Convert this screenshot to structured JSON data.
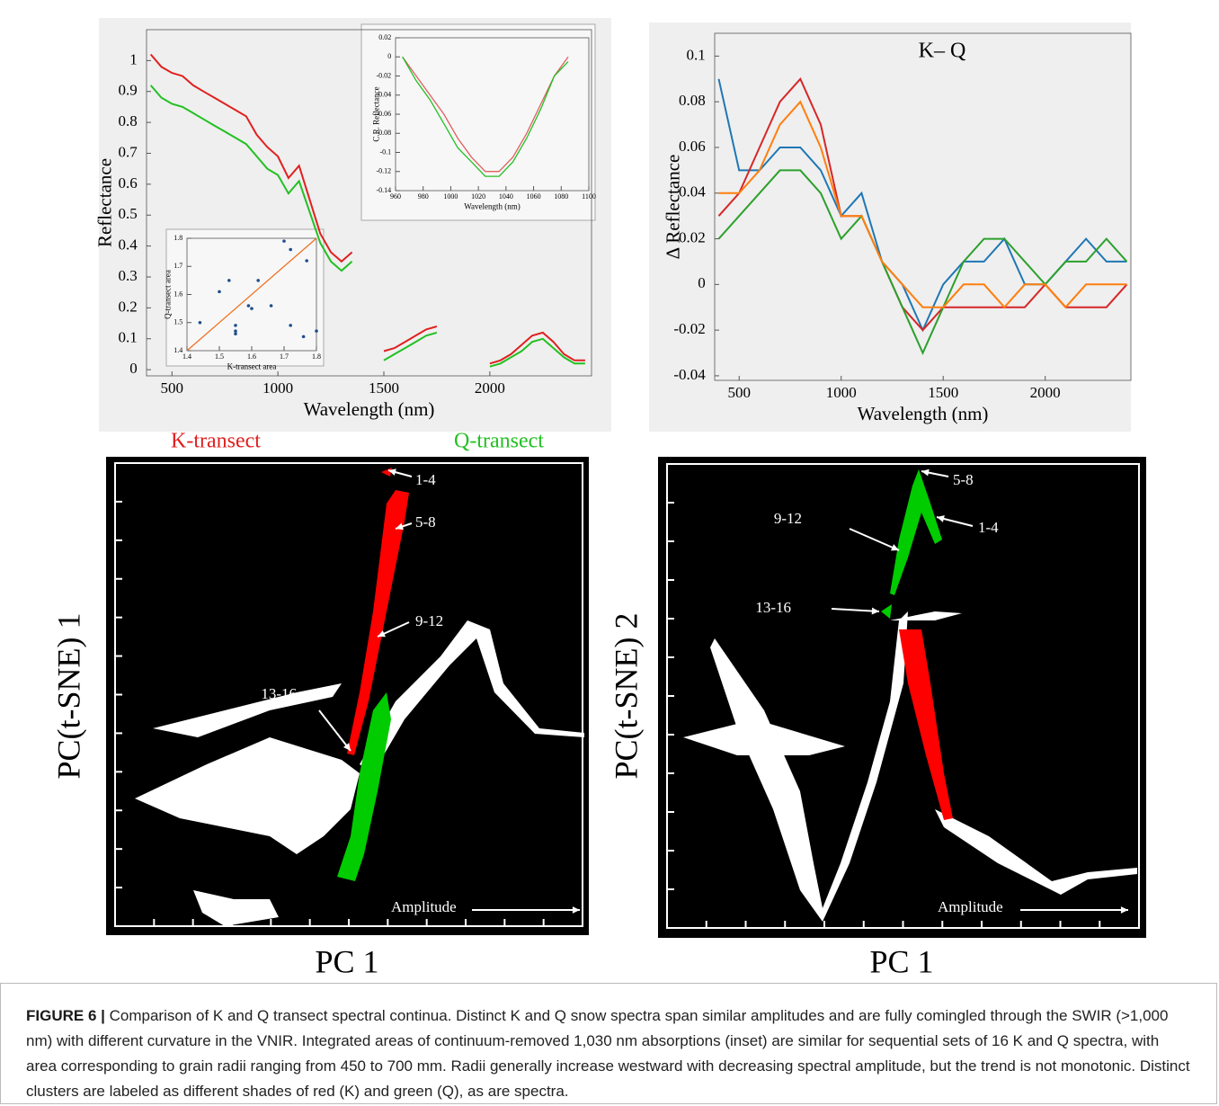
{
  "chart_data": [
    {
      "type": "line",
      "xlabel": "Wavelength (nm)",
      "ylabel": "Reflectance",
      "x": [
        400,
        450,
        500,
        550,
        600,
        650,
        700,
        750,
        800,
        850,
        900,
        950,
        1000,
        1050,
        1100,
        1150,
        1200,
        1250,
        1300,
        1350,
        1400,
        1450,
        1500,
        1550,
        1600,
        1650,
        1700,
        1750,
        1800,
        1850,
        1900,
        1950,
        2000,
        2050,
        2100,
        2150,
        2200,
        2250,
        2300,
        2350,
        2400,
        2450
      ],
      "series": [
        {
          "color": "#e02020",
          "values": [
            1.02,
            0.98,
            0.96,
            0.95,
            0.92,
            0.9,
            0.88,
            0.86,
            0.84,
            0.82,
            0.76,
            0.72,
            0.69,
            0.62,
            0.66,
            0.55,
            0.44,
            0.38,
            0.35,
            0.38,
            null,
            null,
            0.06,
            0.07,
            0.09,
            0.11,
            0.13,
            0.14,
            null,
            null,
            null,
            null,
            0.02,
            0.03,
            0.05,
            0.08,
            0.11,
            0.12,
            0.09,
            0.05,
            0.03,
            0.03
          ]
        },
        {
          "color": "#22c022",
          "values": [
            0.92,
            0.88,
            0.86,
            0.85,
            0.83,
            0.81,
            0.79,
            0.77,
            0.75,
            0.73,
            0.69,
            0.65,
            0.63,
            0.57,
            0.61,
            0.51,
            0.41,
            0.35,
            0.32,
            0.35,
            null,
            null,
            0.03,
            0.05,
            0.07,
            0.09,
            0.11,
            0.12,
            null,
            null,
            null,
            null,
            0.01,
            0.02,
            0.04,
            0.06,
            0.09,
            0.1,
            0.07,
            0.04,
            0.02,
            0.02
          ]
        }
      ],
      "xlim": [
        380,
        2480
      ],
      "ylim": [
        -0.02,
        1.1
      ],
      "xticks": [
        500,
        1000,
        1500,
        2000
      ],
      "yticks": [
        0,
        0.1,
        0.2,
        0.3,
        0.4,
        0.5,
        0.6,
        0.7,
        0.8,
        0.9,
        1
      ]
    },
    {
      "type": "line",
      "xlabel": "Wavelength (nm)",
      "ylabel": "C.R. Reflectance",
      "x": [
        965,
        975,
        985,
        995,
        1005,
        1015,
        1025,
        1035,
        1045,
        1055,
        1065,
        1075,
        1085
      ],
      "series": [
        {
          "color": "#e06060",
          "values": [
            0,
            -0.02,
            -0.04,
            -0.06,
            -0.085,
            -0.105,
            -0.12,
            -0.12,
            -0.105,
            -0.08,
            -0.05,
            -0.02,
            0
          ]
        },
        {
          "color": "#22c022",
          "values": [
            0,
            -0.025,
            -0.045,
            -0.07,
            -0.095,
            -0.11,
            -0.125,
            -0.125,
            -0.11,
            -0.085,
            -0.055,
            -0.02,
            -0.005
          ]
        }
      ],
      "xlim": [
        960,
        1100
      ],
      "ylim": [
        -0.14,
        0.02
      ],
      "xticks": [
        960,
        980,
        1000,
        1020,
        1040,
        1060,
        1080,
        1100
      ],
      "yticks": [
        0.02,
        0,
        -0.02,
        -0.04,
        -0.06,
        -0.08,
        -0.1,
        -0.12,
        -0.14
      ]
    },
    {
      "type": "scatter",
      "xlabel": "K-transect area",
      "ylabel": "Q-transect area",
      "x": [
        1.44,
        1.5,
        1.53,
        1.55,
        1.55,
        1.55,
        1.59,
        1.6,
        1.62,
        1.66,
        1.7,
        1.72,
        1.72,
        1.76,
        1.77,
        1.8
      ],
      "y": [
        1.5,
        1.61,
        1.65,
        1.49,
        1.47,
        1.46,
        1.56,
        1.55,
        1.65,
        1.56,
        1.79,
        1.76,
        1.49,
        1.45,
        1.72,
        1.47
      ],
      "color": "#1f4e8c",
      "fit_line": {
        "x": [
          1.4,
          1.8
        ],
        "y": [
          1.4,
          1.8
        ],
        "color": "#f07020"
      },
      "xlim": [
        1.4,
        1.8
      ],
      "ylim": [
        1.4,
        1.8
      ],
      "xticks": [
        1.4,
        1.5,
        1.6,
        1.7,
        1.8
      ],
      "yticks": [
        1.4,
        1.5,
        1.6,
        1.7,
        1.8
      ]
    },
    {
      "type": "line",
      "title": "K– Q",
      "xlabel": "Wavelength (nm)",
      "ylabel": "Δ Reflectance",
      "x": [
        400,
        500,
        600,
        700,
        800,
        900,
        1000,
        1100,
        1200,
        1300,
        1400,
        1500,
        1600,
        1700,
        1800,
        1900,
        2000,
        2100,
        2200,
        2300,
        2400
      ],
      "series": [
        {
          "color": "#1f77b4",
          "values": [
            0.09,
            0.05,
            0.05,
            0.06,
            0.06,
            0.05,
            0.03,
            0.04,
            0.01,
            0,
            -0.02,
            0,
            0.01,
            0.01,
            0.02,
            0,
            0,
            0.01,
            0.02,
            0.01,
            0.01
          ]
        },
        {
          "color": "#d62728",
          "values": [
            0.03,
            0.04,
            0.06,
            0.08,
            0.09,
            0.07,
            0.03,
            0.03,
            0.01,
            -0.01,
            -0.02,
            -0.01,
            -0.01,
            -0.01,
            -0.01,
            -0.01,
            0,
            -0.01,
            -0.01,
            -0.01,
            0
          ]
        },
        {
          "color": "#2ca02c",
          "values": [
            0.02,
            0.03,
            0.04,
            0.05,
            0.05,
            0.04,
            0.02,
            0.03,
            0.01,
            -0.01,
            -0.03,
            -0.01,
            0.01,
            0.02,
            0.02,
            0.01,
            0,
            0.01,
            0.01,
            0.02,
            0.01
          ]
        },
        {
          "color": "#ff7f0e",
          "values": [
            0.04,
            0.04,
            0.05,
            0.07,
            0.08,
            0.06,
            0.03,
            0.03,
            0.01,
            0,
            -0.01,
            -0.01,
            0,
            0,
            -0.01,
            0,
            0,
            -0.01,
            0,
            0,
            0
          ]
        }
      ],
      "xlim": [
        380,
        2420
      ],
      "ylim": [
        -0.042,
        0.11
      ],
      "xticks": [
        500,
        1000,
        1500,
        2000
      ],
      "yticks": [
        -0.04,
        -0.02,
        0,
        0.02,
        0.04,
        0.06,
        0.08,
        0.1
      ]
    },
    {
      "type": "image",
      "xlabel": "PC 1",
      "ylabel": "PC(t-SNE) 1",
      "annotations": [
        "1-4",
        "5-8",
        "9-12",
        "13-16",
        "Amplitude"
      ]
    },
    {
      "type": "image",
      "xlabel": "PC 1",
      "ylabel": "PC(t-SNE) 2",
      "annotations": [
        "5-8",
        "9-12",
        "1-4",
        "13-16",
        "Amplitude"
      ]
    }
  ],
  "legend_labels": [
    {
      "text": "K-transect",
      "color": "#e02020"
    },
    {
      "text": "Q-transect",
      "color": "#22c022"
    }
  ],
  "caption": {
    "label": "FIGURE 6 |",
    "text": "Comparison of K and Q transect spectral continua. Distinct K and Q snow spectra span similar amplitudes and are fully comingled through the SWIR (>1,000 nm) with different curvature in the VNIR. Integrated areas of continuum-removed 1,030 nm absorptions (inset) are similar for sequential sets of 16 K and Q spectra, with area corresponding to grain radii ranging from 450 to 700 mm. Radii generally increase westward with decreasing spectral amplitude, but the trend is not monotonic. Distinct clusters are labeled as different shades of red (K) and green (Q), as are spectra."
  }
}
